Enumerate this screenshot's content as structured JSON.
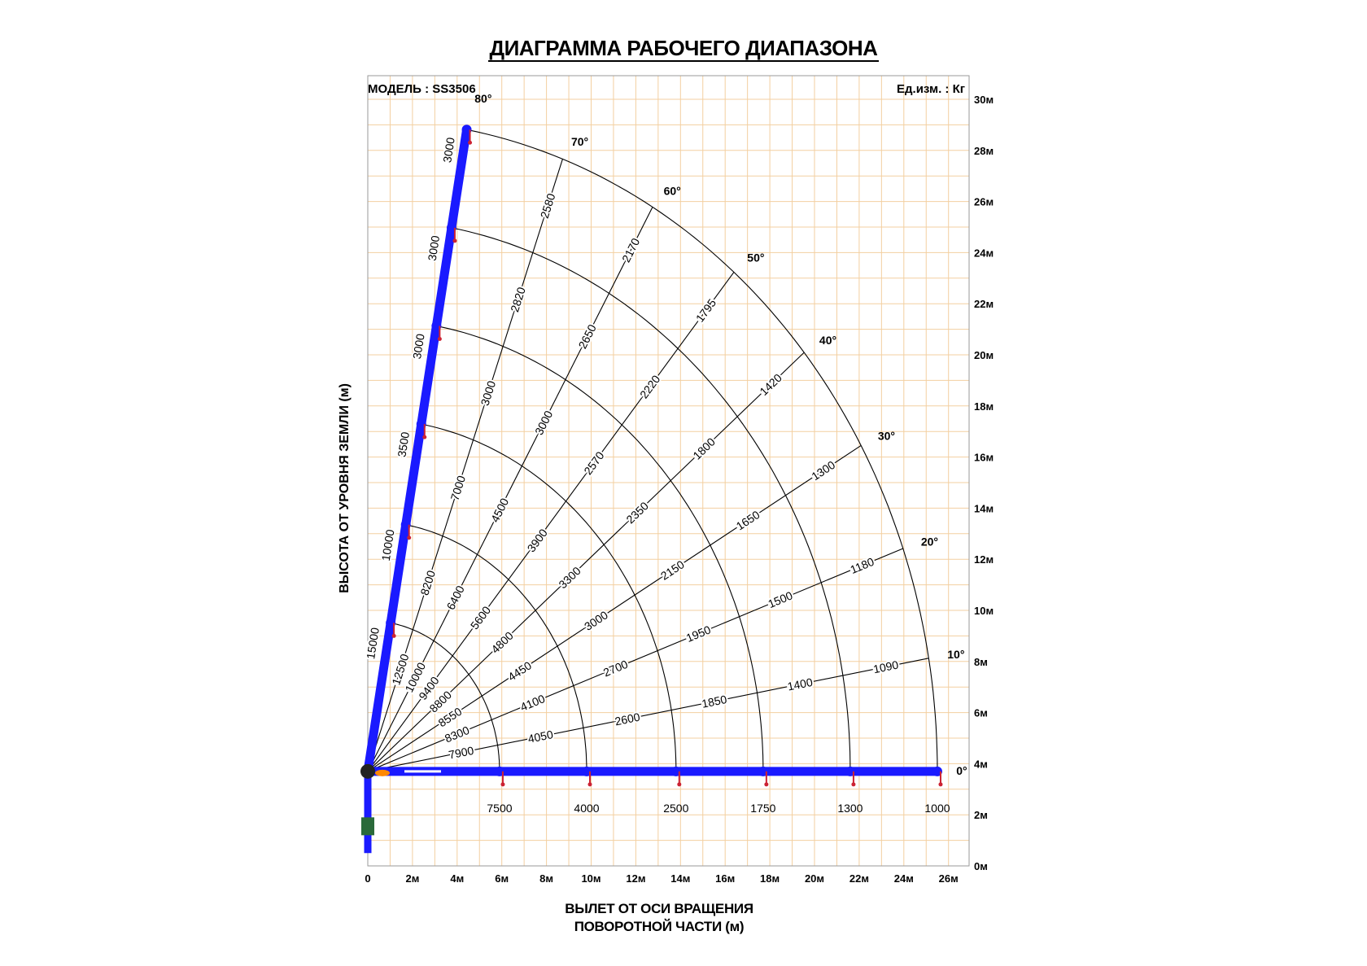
{
  "title": "ДИАГРАММА РАБОЧЕГО ДИАПАЗОНА",
  "model_label": "МОДЕЛЬ : SS3506",
  "units_label": "Ед.изм. : Кг",
  "ylabel": "ВЫСОТА ОТ УРОВНЯ ЗЕМЛИ (м)",
  "xlabel_line1": "ВЫЛЕТ ОТ ОСИ ВРАЩЕНИЯ",
  "xlabel_line2": "ПОВОРОТНОЙ ЧАСТИ (м)",
  "colors": {
    "grid": "#f3cfa0",
    "boom": "#1a1aff",
    "curve": "#000000",
    "background": "#ffffff"
  },
  "chart_data": {
    "type": "diagram",
    "axes": {
      "x_range_m": [
        0,
        27
      ],
      "y_range_m": [
        0,
        31
      ],
      "pivot_m": [
        0,
        3.7
      ],
      "x_ticks": [
        "0",
        "2м",
        "4м",
        "6м",
        "8м",
        "10м",
        "12м",
        "14м",
        "16м",
        "18м",
        "20м",
        "22м",
        "24м",
        "26м"
      ],
      "y_ticks": [
        "0м",
        "2м",
        "4м",
        "6м",
        "8м",
        "10м",
        "12м",
        "14м",
        "16м",
        "18м",
        "20м",
        "22м",
        "24м",
        "26м",
        "28м",
        "30м"
      ],
      "grid": true
    },
    "boom_sections_m": [
      5.9,
      9.8,
      13.8,
      17.7,
      21.6,
      25.5
    ],
    "angles_deg": [
      80,
      70,
      60,
      50,
      40,
      30,
      20,
      10,
      0
    ],
    "angle_labels": [
      "80°",
      "70°",
      "60°",
      "50°",
      "40°",
      "30°",
      "20°",
      "10°",
      "0°"
    ],
    "load_labels_on_rays": [
      {
        "angle": 80,
        "loads": [
          "15000",
          "10000",
          "3500",
          "3000",
          "3000",
          "3000"
        ]
      },
      {
        "angle": 70,
        "loads": [
          "12500",
          "8200",
          "7000",
          "3000",
          "2820",
          "2580"
        ]
      },
      {
        "angle": 60,
        "loads": [
          "10000",
          "6400",
          "4500",
          "3000",
          "2650",
          "2170"
        ]
      },
      {
        "angle": 50,
        "loads": [
          "9400",
          "5600",
          "3900",
          "2570",
          "2220",
          "1795"
        ]
      },
      {
        "angle": 40,
        "loads": [
          "8800",
          "4800",
          "3300",
          "2350",
          "1800",
          "1420"
        ]
      },
      {
        "angle": 30,
        "loads": [
          "8550",
          "4450",
          "3000",
          "2150",
          "1650",
          "1300"
        ]
      },
      {
        "angle": 20,
        "loads": [
          "8300",
          "4100",
          "2700",
          "1950",
          "1500",
          "1180"
        ]
      },
      {
        "angle": 10,
        "loads": [
          "7900",
          "4050",
          "2600",
          "1850",
          "1400",
          "1090"
        ]
      }
    ],
    "horizontal_loads": [
      "7500",
      "4000",
      "2500",
      "1750",
      "1300",
      "1000"
    ]
  }
}
